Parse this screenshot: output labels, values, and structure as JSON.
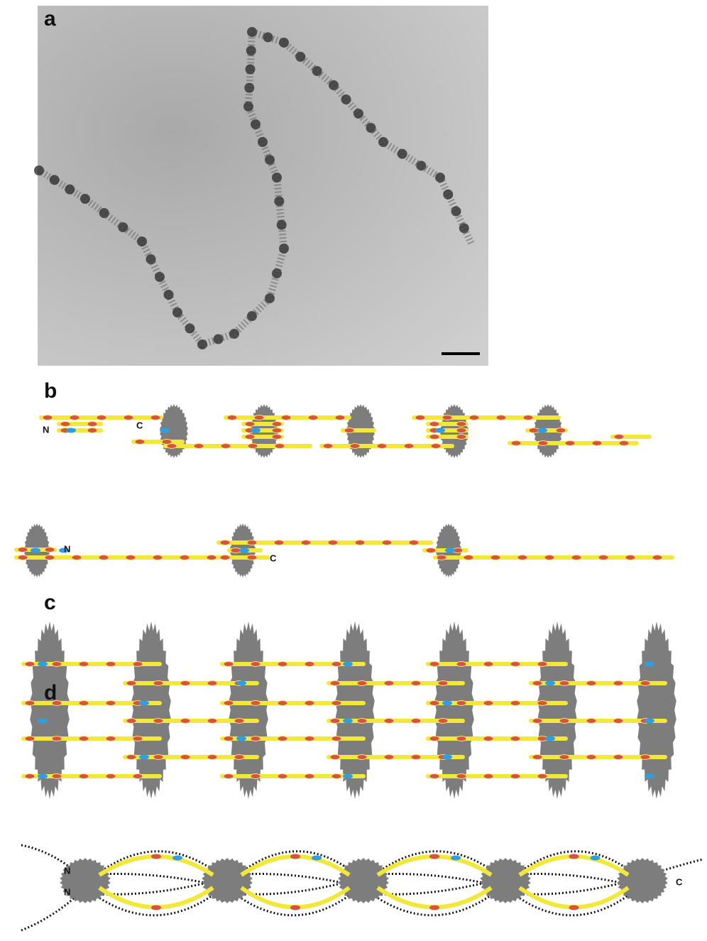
{
  "panels": [
    {
      "label": "a"
    },
    {
      "label": "b",
      "annotations": [
        "N",
        "C",
        "N",
        "C"
      ]
    },
    {
      "label": "c"
    },
    {
      "label": "d",
      "annotations": [
        "N",
        "N",
        "C"
      ]
    }
  ]
}
